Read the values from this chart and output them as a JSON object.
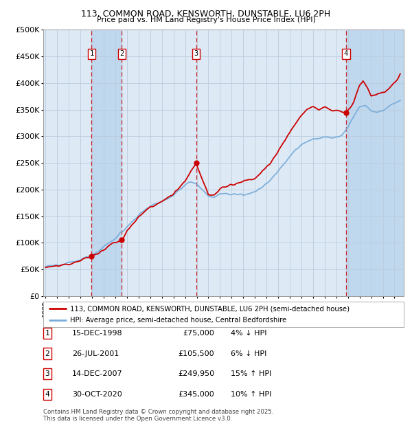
{
  "title_line1": "113, COMMON ROAD, KENSWORTH, DUNSTABLE, LU6 2PH",
  "title_line2": "Price paid vs. HM Land Registry's House Price Index (HPI)",
  "ylim": [
    0,
    500000
  ],
  "yticks": [
    0,
    50000,
    100000,
    150000,
    200000,
    250000,
    300000,
    350000,
    400000,
    450000,
    500000
  ],
  "ytick_labels": [
    "£0",
    "£50K",
    "£100K",
    "£150K",
    "£200K",
    "£250K",
    "£300K",
    "£350K",
    "£400K",
    "£450K",
    "£500K"
  ],
  "sale_dates_num": [
    1998.96,
    2001.56,
    2007.95,
    2020.83
  ],
  "sale_prices": [
    75000,
    105500,
    249950,
    345000
  ],
  "sale_labels": [
    "1",
    "2",
    "3",
    "4"
  ],
  "sale_date_strs": [
    "15-DEC-1998",
    "26-JUL-2001",
    "14-DEC-2007",
    "30-OCT-2020"
  ],
  "sale_price_strs": [
    "£75,000",
    "£105,500",
    "£249,950",
    "£345,000"
  ],
  "sale_hpi_strs": [
    "4% ↓ HPI",
    "6% ↓ HPI",
    "15% ↑ HPI",
    "10% ↑ HPI"
  ],
  "property_line_color": "#cc0000",
  "hpi_line_color": "#7aadda",
  "background_color": "#ffffff",
  "chart_bg_color": "#ddeaf6",
  "grid_color": "#bbccdd",
  "shade_color": "#c0d8ee",
  "legend_property": "113, COMMON ROAD, KENSWORTH, DUNSTABLE, LU6 2PH (semi-detached house)",
  "legend_hpi": "HPI: Average price, semi-detached house, Central Bedfordshire",
  "footnote_line1": "Contains HM Land Registry data © Crown copyright and database right 2025.",
  "footnote_line2": "This data is licensed under the Open Government Licence v3.0.",
  "xlim_start": 1994.8,
  "xlim_end": 2025.8
}
